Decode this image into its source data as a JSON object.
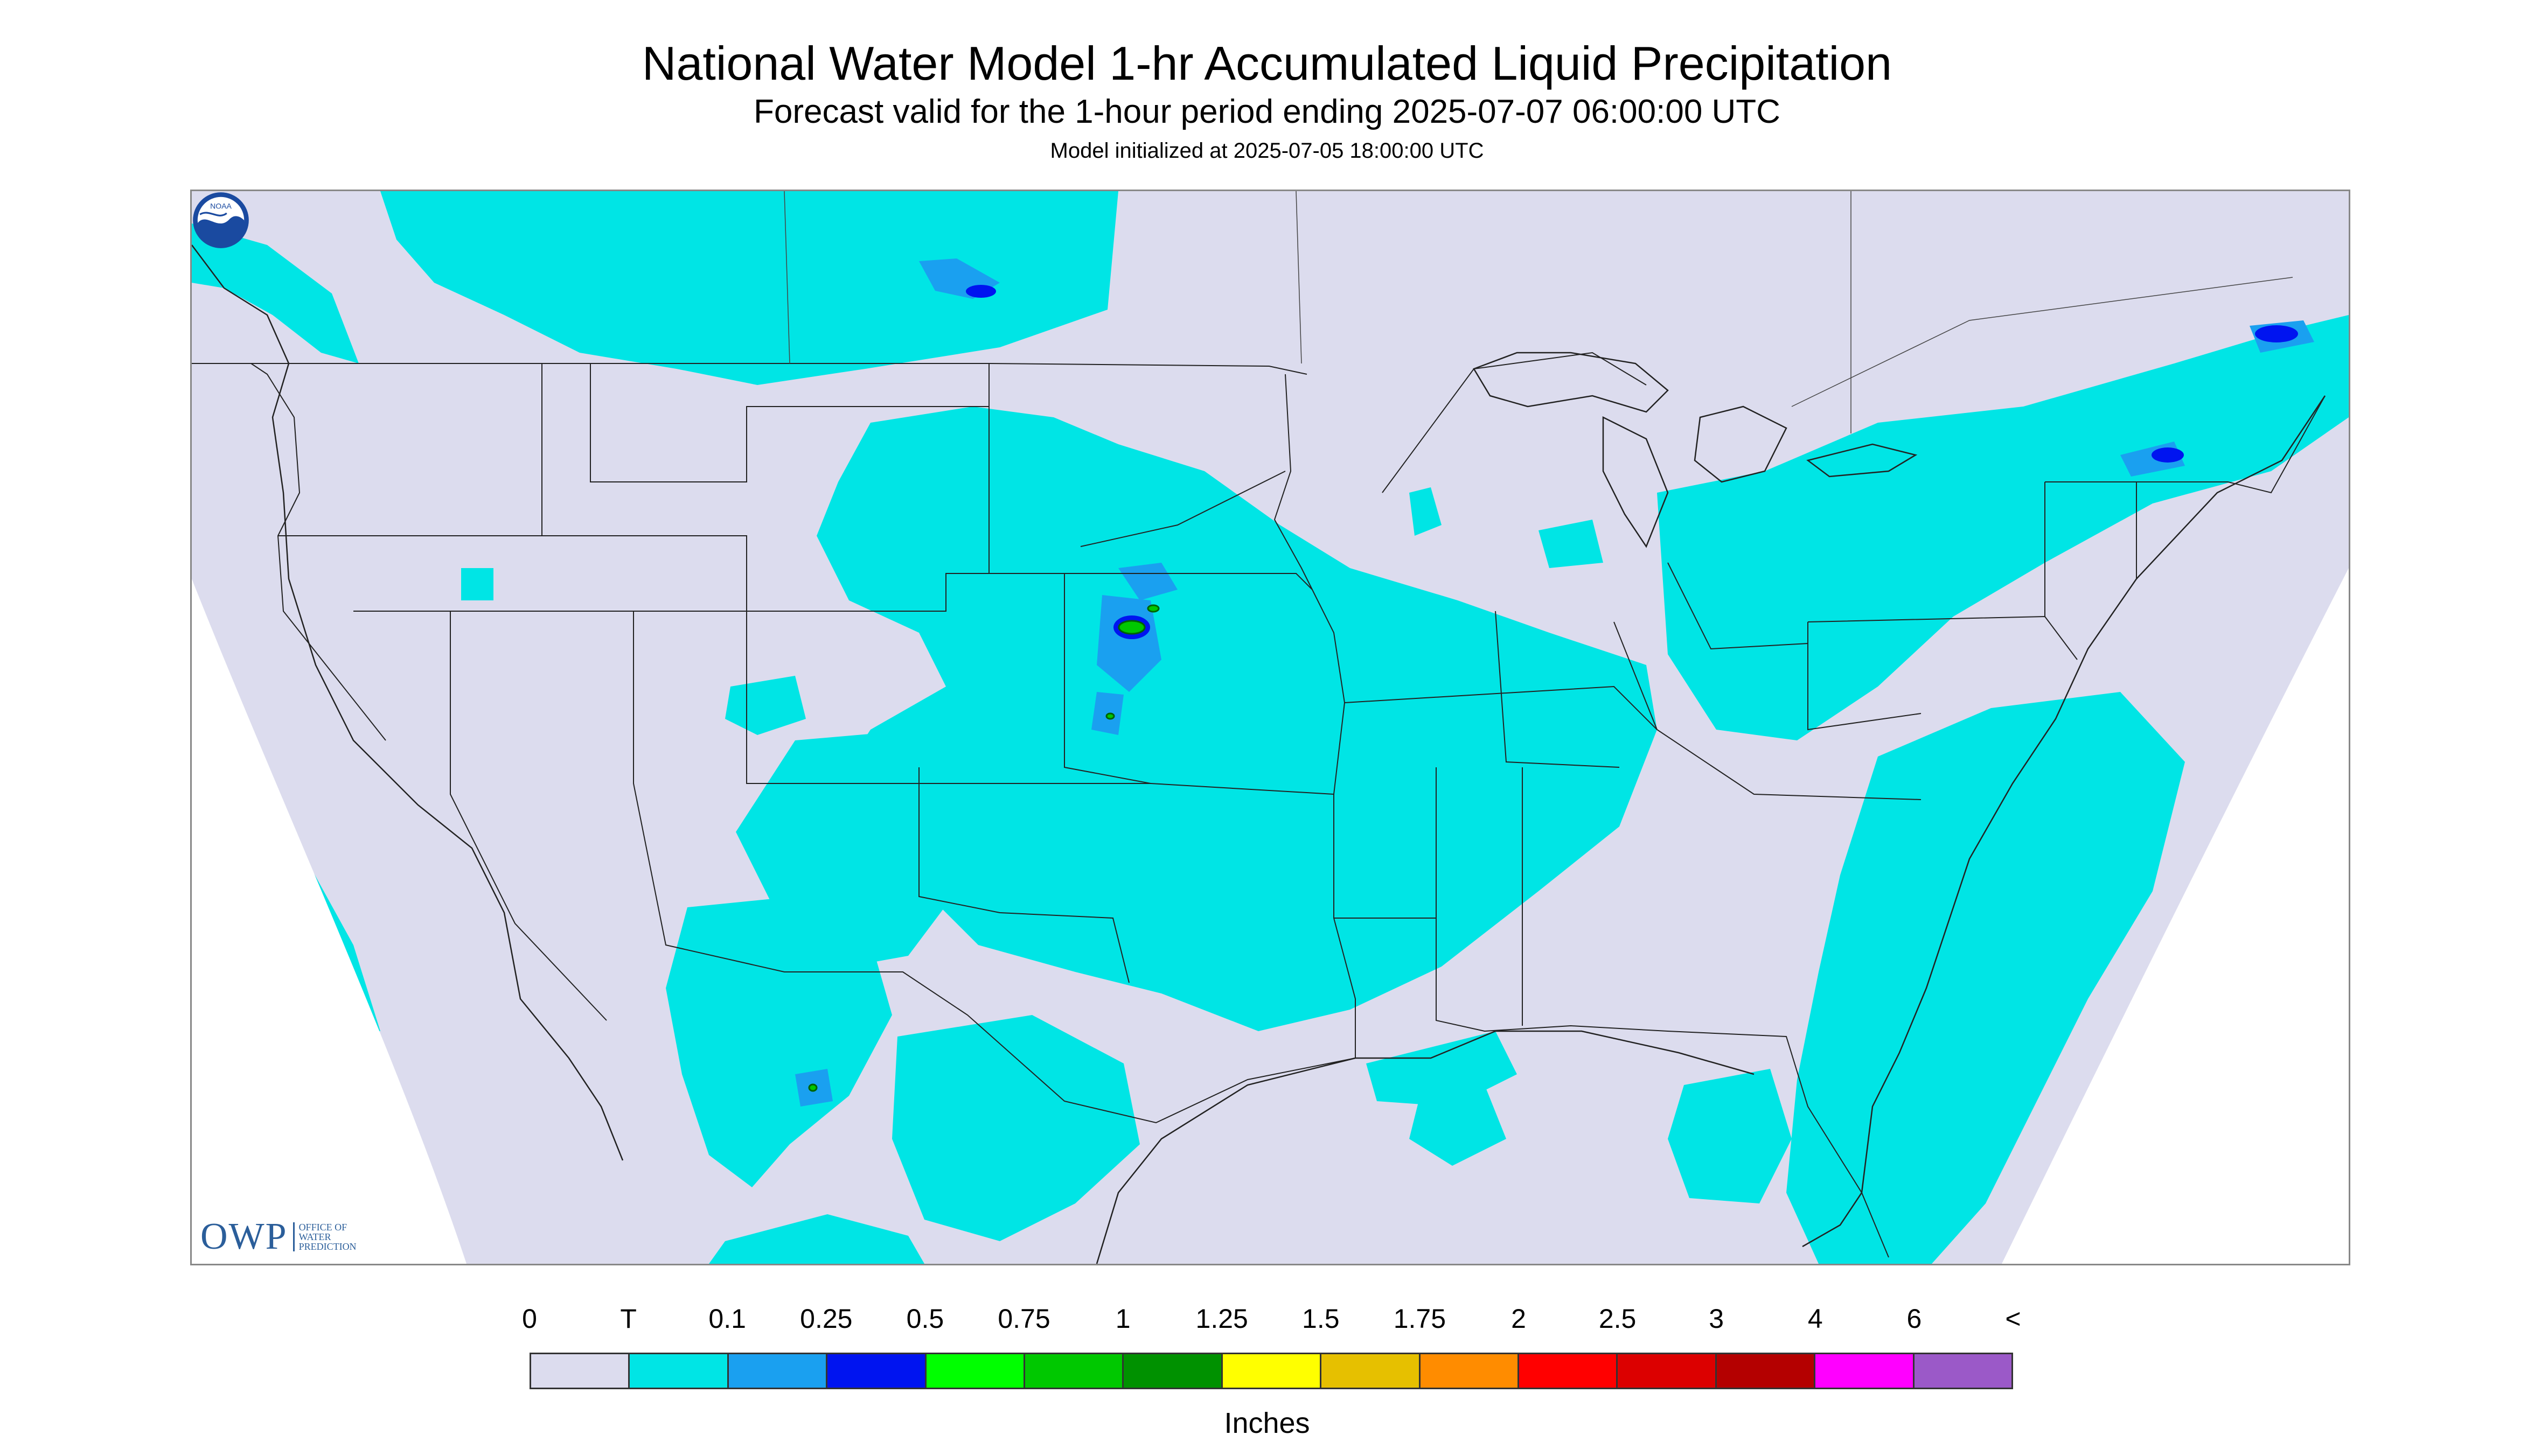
{
  "title": "National Water Model 1-hr Accumulated Liquid Precipitation",
  "subtitle": "Forecast valid for the 1-hour period ending 2025-07-07 06:00:00 UTC",
  "model_init": "Model initialized at 2025-07-05 18:00:00 UTC",
  "logo_owp": {
    "abbr": "OWP",
    "text": "OFFICE OF WATER PREDICTION"
  },
  "logo_noaa": "NOAA",
  "legend": {
    "labels": [
      "0",
      "T",
      "0.1",
      "0.25",
      "0.5",
      "0.75",
      "1",
      "1.25",
      "1.5",
      "1.75",
      "2",
      "2.5",
      "3",
      "4",
      "6",
      "<"
    ],
    "colors": [
      "#dcdcee",
      "#00e5e5",
      "#1aa0f0",
      "#0014f0",
      "#00ff00",
      "#00c800",
      "#009100",
      "#ffff00",
      "#e6c000",
      "#ff8c00",
      "#ff0000",
      "#dc0000",
      "#b40000",
      "#ff00ff",
      "#9b59c8"
    ],
    "units": "Inches"
  },
  "colors": {
    "no_data": "#ffffff",
    "domain": "#dcdcee",
    "trace": "#00e5e5",
    "light": "#1aa0f0",
    "moderate": "#0014f0",
    "heavy": "#00c800",
    "boundary": "#222222"
  }
}
